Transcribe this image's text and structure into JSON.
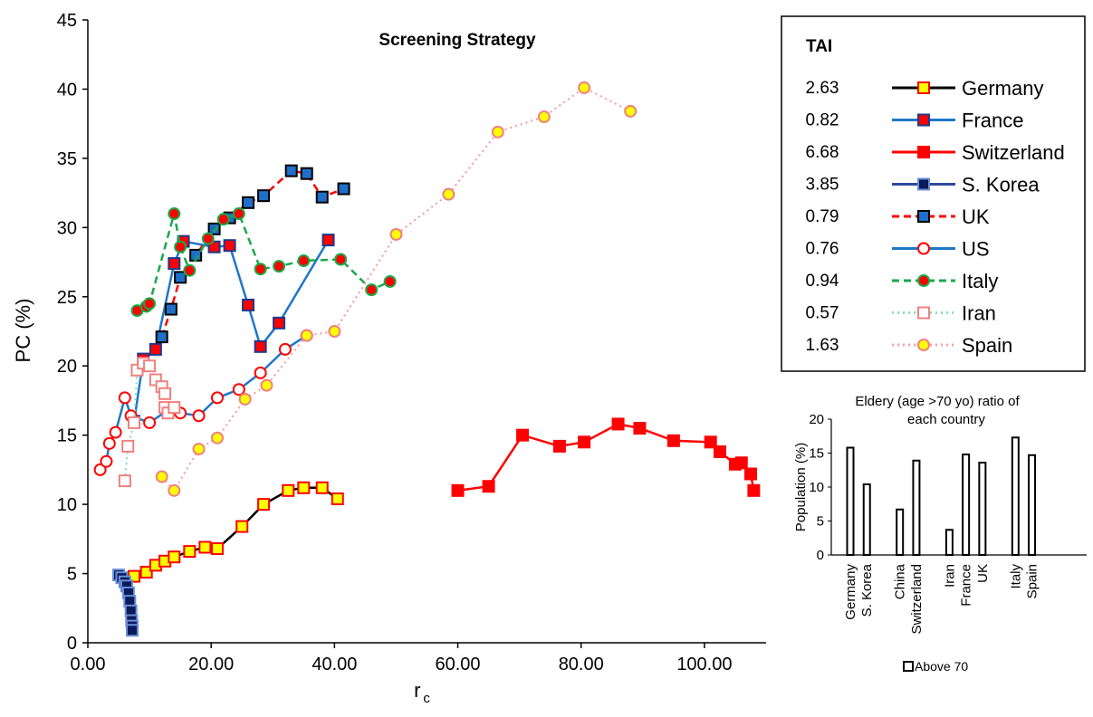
{
  "chart_data": [
    {
      "type": "line",
      "title": "Screening Strategy",
      "xlabel": "r",
      "xlabel_sub": "c",
      "ylabel": "PC (%)",
      "xlim": [
        0,
        110
      ],
      "ylim": [
        0,
        45
      ],
      "x_ticks": [
        "0.00",
        "20.00",
        "40.00",
        "60.00",
        "80.00",
        "100.00"
      ],
      "y_ticks": [
        "0",
        "5",
        "10",
        "15",
        "20",
        "25",
        "30",
        "35",
        "40",
        "45"
      ],
      "grid": false,
      "legend_placement": "top-right",
      "legend_title": "TAI",
      "series": [
        {
          "name": "Germany",
          "tai": "2.63",
          "tai_color": "#000000",
          "line_color": "#000000",
          "dash": "solid",
          "marker": "square",
          "marker_fill": "#ffff00",
          "marker_stroke": "#ff0000",
          "points": [
            [
              7.5,
              4.8
            ],
            [
              9.5,
              5.1
            ],
            [
              11,
              5.6
            ],
            [
              12.5,
              5.9
            ],
            [
              14,
              6.2
            ],
            [
              16.5,
              6.6
            ],
            [
              19,
              6.9
            ],
            [
              21,
              6.8
            ],
            [
              25,
              8.4
            ],
            [
              28.5,
              10.0
            ],
            [
              32.5,
              11.0
            ],
            [
              35,
              11.2
            ],
            [
              38,
              11.2
            ],
            [
              40.5,
              10.4
            ]
          ]
        },
        {
          "name": "France",
          "tai": "0.82",
          "tai_color": "#000000",
          "line_color": "#1f77c8",
          "dash": "solid",
          "marker": "square",
          "marker_fill": "#ff0000",
          "marker_stroke": "#1f3a8a",
          "points": [
            [
              7.5,
              16.0
            ],
            [
              9,
              20.5
            ],
            [
              11,
              21.2
            ],
            [
              14,
              27.4
            ],
            [
              15.5,
              29.0
            ],
            [
              20.5,
              28.6
            ],
            [
              23,
              28.7
            ],
            [
              26,
              24.4
            ],
            [
              28,
              21.4
            ],
            [
              31,
              23.1
            ],
            [
              39,
              29.1
            ]
          ]
        },
        {
          "name": "Switzerland",
          "tai": "6.68",
          "tai_color": "#000000",
          "line_color": "#ff0000",
          "dash": "solid",
          "marker": "square",
          "marker_fill": "#ff0000",
          "marker_stroke": "#ff0000",
          "points": [
            [
              60,
              11.0
            ],
            [
              65,
              11.3
            ],
            [
              70.5,
              15.0
            ],
            [
              76.5,
              14.2
            ],
            [
              80.5,
              14.5
            ],
            [
              86,
              15.8
            ],
            [
              89.5,
              15.5
            ],
            [
              95,
              14.6
            ],
            [
              101,
              14.5
            ],
            [
              102.5,
              13.8
            ],
            [
              105,
              12.9
            ],
            [
              106,
              13.0
            ],
            [
              107.5,
              12.2
            ],
            [
              108,
              11.0
            ]
          ]
        },
        {
          "name": "S. Korea",
          "tai": "3.85",
          "tai_color": "#000000",
          "line_color": "#2e4a9e",
          "dash": "solid",
          "marker": "square",
          "marker_fill": "#0a1a5a",
          "marker_stroke": "#6b8fd6",
          "points": [
            [
              5,
              4.9
            ],
            [
              5.5,
              4.7
            ],
            [
              6,
              4.4
            ],
            [
              6.3,
              4.1
            ],
            [
              6.6,
              3.6
            ],
            [
              6.8,
              3.0
            ],
            [
              7,
              2.3
            ],
            [
              7.1,
              1.6
            ],
            [
              7.2,
              1.2
            ],
            [
              7.2,
              0.9
            ]
          ]
        },
        {
          "name": "UK",
          "tai": "0.79",
          "tai_color": "#000000",
          "line_color": "#ff0000",
          "dash": "dash",
          "marker": "square",
          "marker_fill": "#1f6fc8",
          "marker_stroke": "#000000",
          "points": [
            [
              12,
              22.1
            ],
            [
              13.5,
              24.1
            ],
            [
              15,
              26.4
            ],
            [
              17.5,
              28.0
            ],
            [
              20.5,
              29.9
            ],
            [
              23,
              30.7
            ],
            [
              26,
              31.8
            ],
            [
              28.5,
              32.3
            ],
            [
              33,
              34.1
            ],
            [
              35.5,
              33.9
            ],
            [
              38,
              32.2
            ],
            [
              41.5,
              32.8
            ]
          ]
        },
        {
          "name": "US",
          "tai": "0.76",
          "tai_color": "#000000",
          "line_color": "#1f77c8",
          "dash": "solid",
          "marker": "circle",
          "marker_fill": "#ffffff",
          "marker_stroke": "#ff0000",
          "points": [
            [
              2,
              12.5
            ],
            [
              3,
              13.1
            ],
            [
              3.5,
              14.4
            ],
            [
              4.5,
              15.2
            ],
            [
              6,
              17.7
            ],
            [
              7,
              16.4
            ],
            [
              10,
              15.9
            ],
            [
              13,
              16.8
            ],
            [
              15,
              16.6
            ],
            [
              18,
              16.4
            ],
            [
              21,
              17.7
            ],
            [
              24.5,
              18.3
            ],
            [
              28,
              19.5
            ],
            [
              32,
              21.2
            ],
            [
              35.5,
              22.2
            ]
          ]
        },
        {
          "name": "Italy",
          "tai": "0.94",
          "tai_color": "#000000",
          "line_color": "#1aa84a",
          "dash": "dash",
          "marker": "circle",
          "marker_fill": "#ff0000",
          "marker_stroke": "#1aa84a",
          "points": [
            [
              8,
              24.0
            ],
            [
              9.5,
              24.3
            ],
            [
              10,
              24.5
            ],
            [
              14,
              31.0
            ],
            [
              15,
              28.6
            ],
            [
              16.5,
              26.9
            ],
            [
              19.5,
              29.2
            ],
            [
              22,
              30.6
            ],
            [
              24.5,
              31.0
            ],
            [
              28,
              27.0
            ],
            [
              31,
              27.2
            ],
            [
              35,
              27.6
            ],
            [
              41,
              27.7
            ],
            [
              46,
              25.5
            ],
            [
              49,
              26.1
            ]
          ]
        },
        {
          "name": "Iran",
          "tai": "0.57",
          "tai_color": "#a6a6a6",
          "line_color": "#8fd9c0",
          "dash": "dot",
          "marker": "square",
          "marker_fill": "#ffffff",
          "marker_stroke": "#f08080",
          "points": [
            [
              6,
              11.7
            ],
            [
              6.5,
              14.2
            ],
            [
              7.5,
              15.9
            ],
            [
              8,
              19.7
            ],
            [
              9,
              20.2
            ],
            [
              10,
              20.0
            ],
            [
              11,
              19.0
            ],
            [
              12,
              18.5
            ],
            [
              12.5,
              18.0
            ],
            [
              12.5,
              17.0
            ],
            [
              13,
              16.6
            ],
            [
              14,
              17.0
            ]
          ]
        },
        {
          "name": "Spain",
          "tai": "1.63",
          "tai_color": "#a6a6a6",
          "line_color": "#f4a0a8",
          "dash": "dot",
          "marker": "circle",
          "marker_fill": "#ffff00",
          "marker_stroke": "#f08080",
          "points": [
            [
              12,
              12.0
            ],
            [
              14,
              11.0
            ],
            [
              18,
              14.0
            ],
            [
              21,
              14.8
            ],
            [
              25.5,
              17.6
            ],
            [
              29,
              18.6
            ],
            [
              35.5,
              22.2
            ],
            [
              40,
              22.5
            ],
            [
              50,
              29.5
            ],
            [
              58.5,
              32.4
            ],
            [
              66.5,
              36.9
            ],
            [
              74,
              38.0
            ],
            [
              80.5,
              40.1
            ],
            [
              88,
              38.4
            ]
          ]
        }
      ]
    },
    {
      "type": "bar",
      "title": "Eldery  (age >70 yo) ratio of each country",
      "title_lines": [
        "Eldery  (age >70 yo) ratio of",
        "each country"
      ],
      "ylabel": "Population (%)",
      "ylim": [
        0,
        20
      ],
      "y_ticks": [
        "0",
        "5",
        "10",
        "15",
        "20"
      ],
      "categories": [
        "Germany",
        "S. Korea",
        "China",
        "Switzerland",
        "Iran",
        "France",
        "UK",
        "Italy",
        "Spain"
      ],
      "groups": [
        {
          "categories": [
            "Germany",
            "S. Korea"
          ],
          "values": [
            15.8,
            10.4
          ]
        },
        {
          "categories": [
            "China",
            "Switzerland"
          ],
          "values": [
            6.7,
            13.9
          ]
        },
        {
          "categories": [
            "Iran",
            "France",
            "UK"
          ],
          "values": [
            3.7,
            14.8,
            13.6
          ]
        },
        {
          "categories": [
            "Italy",
            "Spain"
          ],
          "values": [
            17.3,
            14.7
          ]
        }
      ],
      "series": [
        {
          "name": "Above 70"
        }
      ],
      "legend_placement": "bottom"
    }
  ]
}
